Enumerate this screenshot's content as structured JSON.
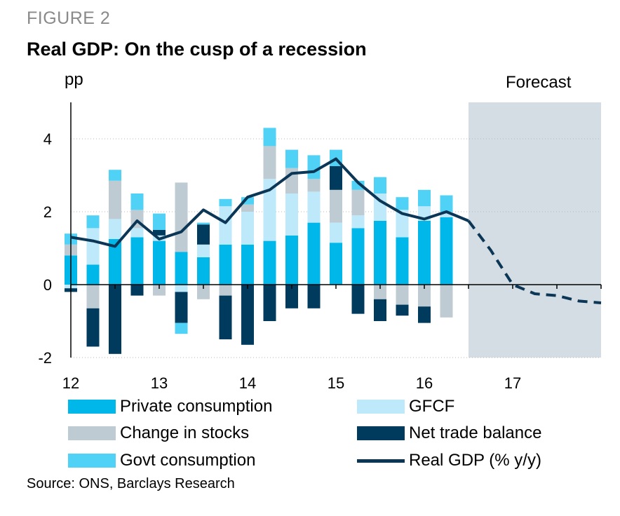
{
  "figure_label": "FIGURE 2",
  "title": "Real GDP: On the cusp of a recession",
  "source": "Source: ONS, Barclays Research",
  "colors": {
    "private_consumption": "#00b7ea",
    "gfcf": "#bde9fa",
    "change_in_stocks": "#bfcbd3",
    "net_trade_balance": "#003a5d",
    "govt_consumption": "#4fd2f5",
    "real_gdp": "#0b3656",
    "forecast_shade": "#d3dde3",
    "axis": "#000000",
    "grid": "#b7b7b7"
  },
  "legend": [
    {
      "key": "private_consumption",
      "label": "Private consumption",
      "kind": "box"
    },
    {
      "key": "gfcf",
      "label": "GFCF",
      "kind": "box"
    },
    {
      "key": "change_in_stocks",
      "label": "Change in stocks",
      "kind": "box"
    },
    {
      "key": "net_trade_balance",
      "label": "Net trade balance",
      "kind": "box"
    },
    {
      "key": "govt_consumption",
      "label": "Govt consumption",
      "kind": "box"
    },
    {
      "key": "real_gdp",
      "label": "Real GDP (% y/y)",
      "kind": "line"
    }
  ],
  "chart_data": {
    "type": "bar",
    "stacked": true,
    "ylabel": "pp",
    "ylim": [
      -2,
      5
    ],
    "yticks": [
      -2,
      0,
      2,
      4
    ],
    "xlim": [
      2012.0,
      2018.0
    ],
    "xticks": [
      {
        "value": 2012.0,
        "label": "12"
      },
      {
        "value": 2013.0,
        "label": "13"
      },
      {
        "value": 2014.0,
        "label": "14"
      },
      {
        "value": 2015.0,
        "label": "15"
      },
      {
        "value": 2016.0,
        "label": "16"
      },
      {
        "value": 2017.0,
        "label": "17"
      }
    ],
    "grid": "horizontal dotted",
    "forecast_region": {
      "start": 2016.5,
      "end": 2018.0,
      "label": "Forecast"
    },
    "bar_series": [
      {
        "name": "Private consumption",
        "key": "private_consumption"
      },
      {
        "name": "GFCF",
        "key": "gfcf"
      },
      {
        "name": "Change in stocks",
        "key": "change_in_stocks"
      },
      {
        "name": "Net trade balance",
        "key": "net_trade_balance"
      },
      {
        "name": "Govt consumption",
        "key": "govt_consumption"
      }
    ],
    "bars": [
      {
        "x": 2012.0,
        "private_consumption": 0.8,
        "gfcf": -0.1,
        "change_in_stocks": 0.3,
        "net_trade_balance": -0.1,
        "govt_consumption": 0.3
      },
      {
        "x": 2012.25,
        "private_consumption": 0.55,
        "gfcf": 1.0,
        "change_in_stocks": -0.65,
        "net_trade_balance": -1.05,
        "govt_consumption": 0.35
      },
      {
        "x": 2012.5,
        "private_consumption": 1.25,
        "gfcf": 0.55,
        "change_in_stocks": 1.05,
        "net_trade_balance": -1.9,
        "govt_consumption": 0.3
      },
      {
        "x": 2012.75,
        "private_consumption": 1.3,
        "gfcf": 0.25,
        "change_in_stocks": 0.5,
        "net_trade_balance": -0.3,
        "govt_consumption": 0.45
      },
      {
        "x": 2013.0,
        "private_consumption": 1.2,
        "gfcf": 0.15,
        "change_in_stocks": -0.3,
        "net_trade_balance": 0.15,
        "govt_consumption": 0.45
      },
      {
        "x": 2013.25,
        "private_consumption": 0.9,
        "gfcf": -0.2,
        "change_in_stocks": 1.9,
        "net_trade_balance": -0.85,
        "govt_consumption": -0.3
      },
      {
        "x": 2013.5,
        "private_consumption": 0.75,
        "gfcf": 0.35,
        "change_in_stocks": -0.4,
        "net_trade_balance": 0.55,
        "govt_consumption": 0.05
      },
      {
        "x": 2013.75,
        "private_consumption": 1.1,
        "gfcf": 1.05,
        "change_in_stocks": -0.3,
        "net_trade_balance": -1.2,
        "govt_consumption": 0.2
      },
      {
        "x": 2014.0,
        "private_consumption": 1.1,
        "gfcf": 0.9,
        "change_in_stocks": 0.2,
        "net_trade_balance": -1.65,
        "govt_consumption": 0.2
      },
      {
        "x": 2014.25,
        "private_consumption": 1.2,
        "gfcf": 1.7,
        "change_in_stocks": 0.9,
        "net_trade_balance": -1.0,
        "govt_consumption": 0.5
      },
      {
        "x": 2014.5,
        "private_consumption": 1.35,
        "gfcf": 1.15,
        "change_in_stocks": 0.7,
        "net_trade_balance": -0.65,
        "govt_consumption": 0.5
      },
      {
        "x": 2014.75,
        "private_consumption": 1.7,
        "gfcf": 0.85,
        "change_in_stocks": 0.35,
        "net_trade_balance": -0.65,
        "govt_consumption": 0.65
      },
      {
        "x": 2015.0,
        "private_consumption": 1.15,
        "gfcf": 0.55,
        "change_in_stocks": 0.9,
        "net_trade_balance": 0.65,
        "govt_consumption": 0.45
      },
      {
        "x": 2015.25,
        "private_consumption": 1.55,
        "gfcf": 0.35,
        "change_in_stocks": 0.7,
        "net_trade_balance": -0.8,
        "govt_consumption": 0.25
      },
      {
        "x": 2015.5,
        "private_consumption": 1.75,
        "gfcf": 0.75,
        "change_in_stocks": -0.4,
        "net_trade_balance": -0.6,
        "govt_consumption": 0.45
      },
      {
        "x": 2015.75,
        "private_consumption": 1.3,
        "gfcf": 0.75,
        "change_in_stocks": -0.55,
        "net_trade_balance": -0.3,
        "govt_consumption": 0.35
      },
      {
        "x": 2016.0,
        "private_consumption": 1.75,
        "gfcf": 0.4,
        "change_in_stocks": -0.6,
        "net_trade_balance": -0.45,
        "govt_consumption": 0.45
      },
      {
        "x": 2016.25,
        "private_consumption": 1.85,
        "gfcf": 0.15,
        "change_in_stocks": -0.9,
        "net_trade_balance": 0.0,
        "govt_consumption": 0.45
      }
    ],
    "line_series": {
      "name": "Real GDP (% y/y)",
      "key": "real_gdp",
      "actual": [
        {
          "x": 2012.0,
          "y": 1.3
        },
        {
          "x": 2012.25,
          "y": 1.2
        },
        {
          "x": 2012.5,
          "y": 1.05
        },
        {
          "x": 2012.75,
          "y": 1.75
        },
        {
          "x": 2013.0,
          "y": 1.25
        },
        {
          "x": 2013.25,
          "y": 1.45
        },
        {
          "x": 2013.5,
          "y": 2.05
        },
        {
          "x": 2013.75,
          "y": 1.7
        },
        {
          "x": 2014.0,
          "y": 2.4
        },
        {
          "x": 2014.25,
          "y": 2.6
        },
        {
          "x": 2014.5,
          "y": 3.05
        },
        {
          "x": 2014.75,
          "y": 3.1
        },
        {
          "x": 2015.0,
          "y": 3.45
        },
        {
          "x": 2015.25,
          "y": 2.8
        },
        {
          "x": 2015.5,
          "y": 2.3
        },
        {
          "x": 2015.75,
          "y": 1.95
        },
        {
          "x": 2016.0,
          "y": 1.8
        },
        {
          "x": 2016.25,
          "y": 2.0
        },
        {
          "x": 2016.5,
          "y": 1.75
        }
      ],
      "forecast": [
        {
          "x": 2016.5,
          "y": 1.75
        },
        {
          "x": 2016.75,
          "y": 0.95
        },
        {
          "x": 2017.0,
          "y": 0.0
        },
        {
          "x": 2017.25,
          "y": -0.25
        },
        {
          "x": 2017.5,
          "y": -0.3
        },
        {
          "x": 2017.75,
          "y": -0.45
        },
        {
          "x": 2018.0,
          "y": -0.5
        }
      ]
    }
  }
}
